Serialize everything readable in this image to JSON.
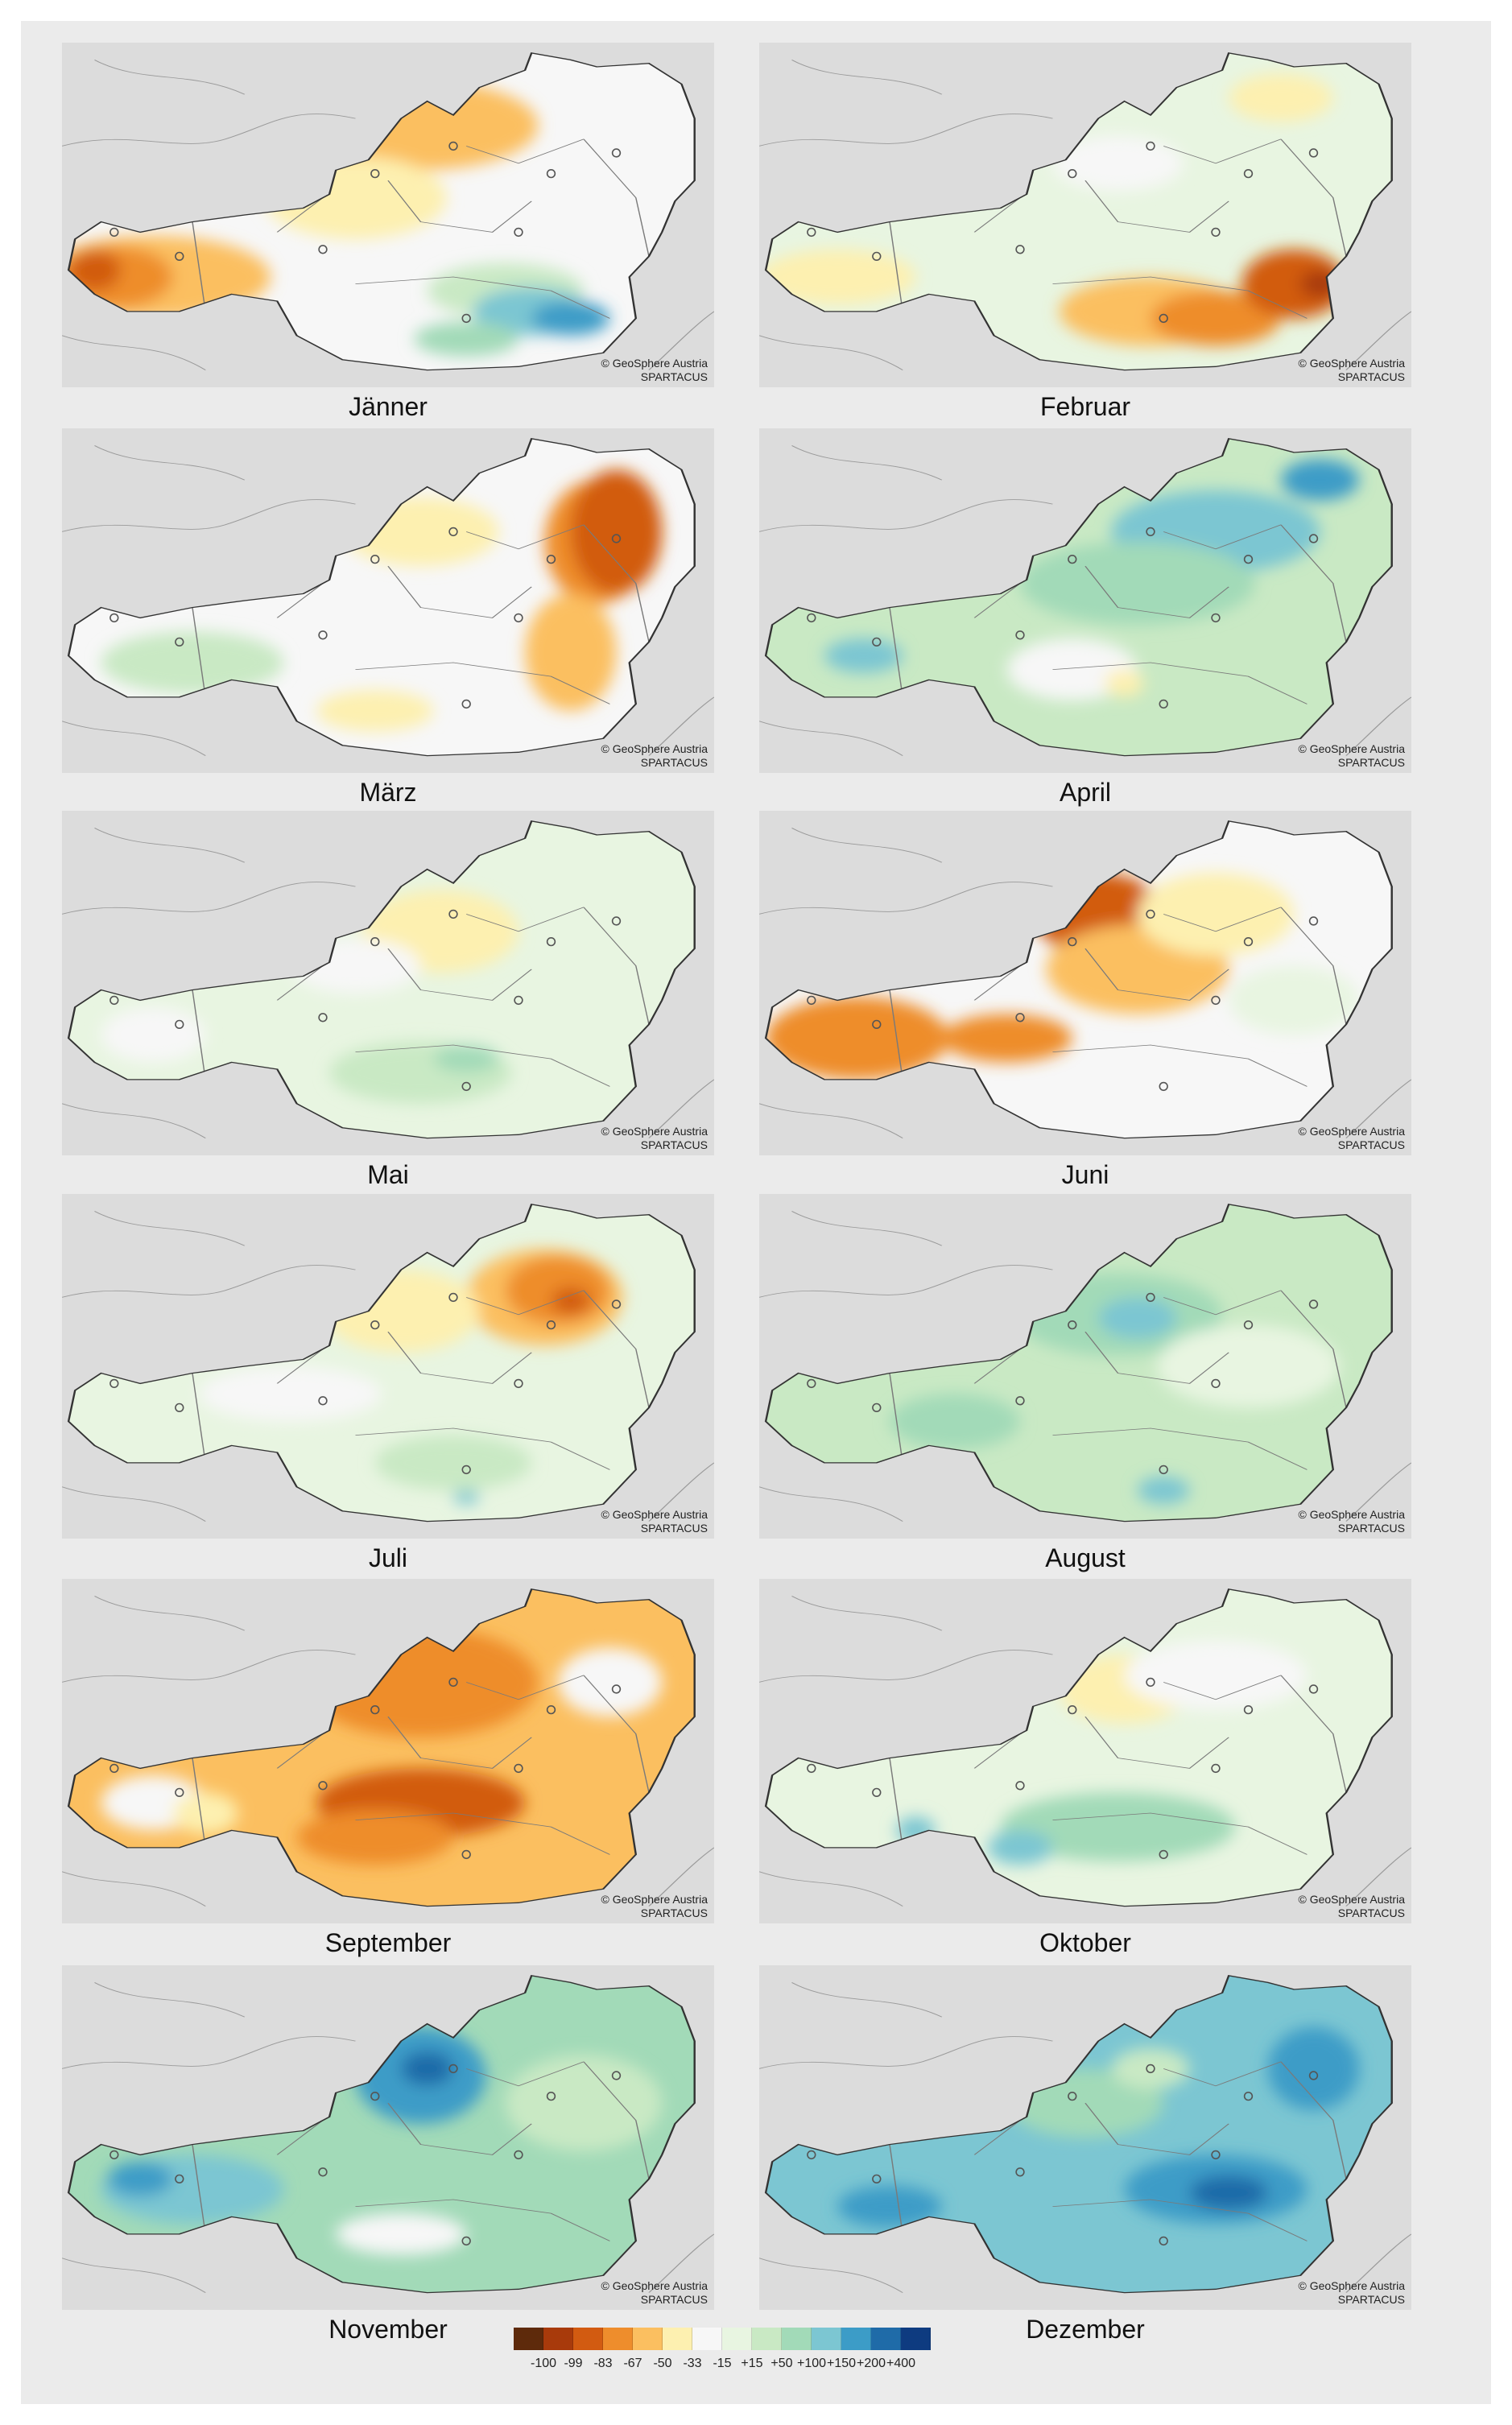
{
  "credit": {
    "line1": "© GeoSphere Austria",
    "line2": "SPARTACUS"
  },
  "panels": [
    {
      "month": "Jänner",
      "base": "#f7f7f7",
      "blobs": [
        [
          "#fbbf60",
          0.14,
          0.68,
          0.18,
          0.12
        ],
        [
          "#ee8d2c",
          0.08,
          0.68,
          0.09,
          0.09
        ],
        [
          "#d25b11",
          0.05,
          0.66,
          0.04,
          0.06
        ],
        [
          "#fbbf60",
          0.55,
          0.24,
          0.18,
          0.13
        ],
        [
          "#fdf0b0",
          0.45,
          0.45,
          0.14,
          0.12
        ],
        [
          "#c9e9c4",
          0.68,
          0.72,
          0.12,
          0.08
        ],
        [
          "#7cc6d2",
          0.72,
          0.78,
          0.09,
          0.07
        ],
        [
          "#3c9cc7",
          0.78,
          0.8,
          0.06,
          0.05
        ],
        [
          "#a2dab8",
          0.62,
          0.86,
          0.08,
          0.05
        ]
      ]
    },
    {
      "month": "Februar",
      "base": "#e8f5e1",
      "blobs": [
        [
          "#fdf0b0",
          0.12,
          0.68,
          0.12,
          0.08
        ],
        [
          "#fbbf60",
          0.6,
          0.78,
          0.14,
          0.1
        ],
        [
          "#ee8d2c",
          0.7,
          0.8,
          0.1,
          0.08
        ],
        [
          "#d25b11",
          0.82,
          0.7,
          0.08,
          0.1
        ],
        [
          "#a83a0b",
          0.86,
          0.7,
          0.03,
          0.04
        ],
        [
          "#f7f7f7",
          0.55,
          0.35,
          0.1,
          0.08
        ],
        [
          "#fdf0b0",
          0.8,
          0.16,
          0.08,
          0.07
        ]
      ]
    },
    {
      "month": "März",
      "base": "#f7f7f7",
      "blobs": [
        [
          "#ee8d2c",
          0.82,
          0.33,
          0.08,
          0.18
        ],
        [
          "#d25b11",
          0.85,
          0.3,
          0.07,
          0.18
        ],
        [
          "#fbbf60",
          0.78,
          0.65,
          0.07,
          0.17
        ],
        [
          "#fdf0b0",
          0.55,
          0.3,
          0.12,
          0.1
        ],
        [
          "#c9e9c4",
          0.2,
          0.68,
          0.14,
          0.09
        ],
        [
          "#fdf0b0",
          0.48,
          0.82,
          0.09,
          0.06
        ]
      ]
    },
    {
      "month": "April",
      "base": "#c9e9c4",
      "blobs": [
        [
          "#7cc6d2",
          0.7,
          0.3,
          0.16,
          0.12
        ],
        [
          "#3c9cc7",
          0.86,
          0.15,
          0.06,
          0.06
        ],
        [
          "#a2dab8",
          0.58,
          0.45,
          0.18,
          0.12
        ],
        [
          "#f7f7f7",
          0.48,
          0.7,
          0.1,
          0.09
        ],
        [
          "#7cc6d2",
          0.16,
          0.66,
          0.06,
          0.05
        ],
        [
          "#fdf0b0",
          0.56,
          0.74,
          0.03,
          0.04
        ]
      ]
    },
    {
      "month": "Mai",
      "base": "#e8f5e1",
      "blobs": [
        [
          "#fdf0b0",
          0.58,
          0.35,
          0.12,
          0.12
        ],
        [
          "#f7f7f7",
          0.45,
          0.45,
          0.1,
          0.08
        ],
        [
          "#c9e9c4",
          0.55,
          0.76,
          0.14,
          0.09
        ],
        [
          "#a2dab8",
          0.62,
          0.72,
          0.05,
          0.04
        ],
        [
          "#f7f7f7",
          0.14,
          0.65,
          0.08,
          0.08
        ]
      ]
    },
    {
      "month": "Juni",
      "base": "#f7f7f7",
      "blobs": [
        [
          "#ee8d2c",
          0.15,
          0.66,
          0.14,
          0.12
        ],
        [
          "#d25b11",
          0.52,
          0.3,
          0.1,
          0.12
        ],
        [
          "#fbbf60",
          0.58,
          0.46,
          0.14,
          0.13
        ],
        [
          "#fdf0b0",
          0.7,
          0.3,
          0.12,
          0.12
        ],
        [
          "#ee8d2c",
          0.38,
          0.66,
          0.1,
          0.07
        ],
        [
          "#e8f5e1",
          0.82,
          0.55,
          0.1,
          0.1
        ]
      ]
    },
    {
      "month": "Juli",
      "base": "#e8f5e1",
      "blobs": [
        [
          "#fbbf60",
          0.74,
          0.3,
          0.12,
          0.14
        ],
        [
          "#ee8d2c",
          0.76,
          0.28,
          0.08,
          0.1
        ],
        [
          "#d25b11",
          0.78,
          0.31,
          0.03,
          0.04
        ],
        [
          "#fdf0b0",
          0.52,
          0.34,
          0.12,
          0.12
        ],
        [
          "#f7f7f7",
          0.35,
          0.58,
          0.14,
          0.08
        ],
        [
          "#c9e9c4",
          0.6,
          0.78,
          0.12,
          0.08
        ],
        [
          "#7cc6d2",
          0.62,
          0.88,
          0.02,
          0.02
        ]
      ]
    },
    {
      "month": "August",
      "base": "#c9e9c4",
      "blobs": [
        [
          "#a2dab8",
          0.55,
          0.35,
          0.16,
          0.12
        ],
        [
          "#7cc6d2",
          0.58,
          0.36,
          0.06,
          0.06
        ],
        [
          "#e8f5e1",
          0.75,
          0.5,
          0.14,
          0.12
        ],
        [
          "#a2dab8",
          0.3,
          0.66,
          0.1,
          0.08
        ],
        [
          "#7cc6d2",
          0.62,
          0.86,
          0.04,
          0.04
        ]
      ]
    },
    {
      "month": "September",
      "base": "#fbbf60",
      "blobs": [
        [
          "#ee8d2c",
          0.55,
          0.3,
          0.18,
          0.16
        ],
        [
          "#d25b11",
          0.55,
          0.65,
          0.16,
          0.1
        ],
        [
          "#ee8d2c",
          0.48,
          0.75,
          0.12,
          0.08
        ],
        [
          "#f7f7f7",
          0.84,
          0.3,
          0.08,
          0.1
        ],
        [
          "#f7f7f7",
          0.14,
          0.65,
          0.08,
          0.08
        ],
        [
          "#fdf0b0",
          0.22,
          0.68,
          0.05,
          0.06
        ]
      ]
    },
    {
      "month": "Oktober",
      "base": "#e8f5e1",
      "blobs": [
        [
          "#fdf0b0",
          0.56,
          0.32,
          0.1,
          0.1
        ],
        [
          "#f7f7f7",
          0.7,
          0.28,
          0.14,
          0.1
        ],
        [
          "#a2dab8",
          0.55,
          0.72,
          0.18,
          0.1
        ],
        [
          "#7cc6d2",
          0.4,
          0.78,
          0.05,
          0.05
        ],
        [
          "#7cc6d2",
          0.24,
          0.73,
          0.03,
          0.04
        ]
      ]
    },
    {
      "month": "November",
      "base": "#a2dab8",
      "blobs": [
        [
          "#3c9cc7",
          0.55,
          0.32,
          0.1,
          0.14
        ],
        [
          "#1f6ba8",
          0.56,
          0.3,
          0.04,
          0.05
        ],
        [
          "#7cc6d2",
          0.2,
          0.65,
          0.14,
          0.1
        ],
        [
          "#3c9cc7",
          0.12,
          0.62,
          0.05,
          0.05
        ],
        [
          "#c9e9c4",
          0.8,
          0.4,
          0.12,
          0.14
        ],
        [
          "#f7f7f7",
          0.52,
          0.78,
          0.1,
          0.06
        ]
      ]
    },
    {
      "month": "Dezember",
      "base": "#7cc6d2",
      "blobs": [
        [
          "#3c9cc7",
          0.7,
          0.65,
          0.14,
          0.1
        ],
        [
          "#1f6ba8",
          0.72,
          0.66,
          0.06,
          0.05
        ],
        [
          "#3c9cc7",
          0.85,
          0.3,
          0.07,
          0.12
        ],
        [
          "#a2dab8",
          0.5,
          0.4,
          0.12,
          0.1
        ],
        [
          "#3c9cc7",
          0.2,
          0.7,
          0.08,
          0.06
        ],
        [
          "#c9e9c4",
          0.6,
          0.3,
          0.06,
          0.06
        ]
      ]
    }
  ],
  "legend": {
    "labels": [
      "-100",
      "-99",
      "-83",
      "-67",
      "-50",
      "-33",
      "-15",
      "+15",
      "+50",
      "+100",
      "+150",
      "+200",
      "+400"
    ],
    "colors": [
      "#5e2a0b",
      "#a83a0b",
      "#d25b11",
      "#ee8d2c",
      "#fbbf60",
      "#fdf0b0",
      "#f7f7f7",
      "#e8f5e1",
      "#c9e9c4",
      "#a2dab8",
      "#7cc6d2",
      "#3c9cc7",
      "#1f6ba8",
      "#0e3b80"
    ]
  }
}
